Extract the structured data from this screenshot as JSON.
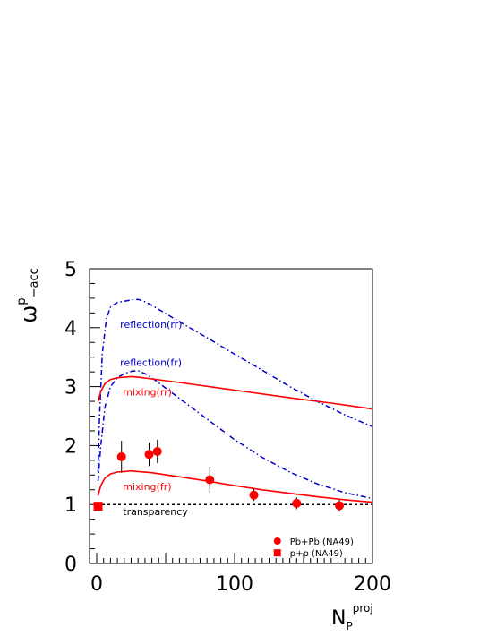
{
  "chart_data": {
    "type": "scatter",
    "ylabel": "ω",
    "ylabel_superscript": "p",
    "ylabel_subscript": "−acc",
    "xlabel": "N",
    "xlabel_subscript": "P",
    "xlabel_superscript": "proj",
    "xlim": [
      -5,
      200
    ],
    "ylim": [
      0,
      5
    ],
    "xticks": [
      0,
      100,
      200
    ],
    "yticks": [
      0,
      1,
      2,
      3,
      4,
      5
    ],
    "grid": false,
    "legend_position": "bottom-right",
    "curves": [
      {
        "label": "reflection(rr)",
        "color": "#0000cc",
        "style": "dash-dot",
        "x": [
          1,
          2,
          4,
          7,
          10,
          15,
          20,
          25,
          30,
          35,
          40,
          60,
          80,
          100,
          120,
          140,
          160,
          180,
          200
        ],
        "y": [
          1.55,
          2.45,
          3.55,
          4.15,
          4.35,
          4.43,
          4.45,
          4.47,
          4.48,
          4.44,
          4.38,
          4.1,
          3.83,
          3.55,
          3.28,
          3.0,
          2.75,
          2.52,
          2.32
        ]
      },
      {
        "label": "reflection(fr)",
        "color": "#0000cc",
        "style": "dash-dot",
        "x": [
          1,
          3,
          6,
          10,
          15,
          20,
          25,
          30,
          35,
          40,
          60,
          80,
          100,
          120,
          140,
          160,
          180,
          200
        ],
        "y": [
          1.4,
          2.0,
          2.65,
          3.0,
          3.15,
          3.22,
          3.26,
          3.27,
          3.22,
          3.15,
          2.8,
          2.45,
          2.1,
          1.8,
          1.55,
          1.35,
          1.2,
          1.1
        ]
      },
      {
        "label": "mixing(rr)",
        "color": "#ff0000",
        "style": "solid",
        "x": [
          1,
          3,
          6,
          10,
          15,
          20,
          25,
          30,
          40,
          60,
          100,
          140,
          170,
          200
        ],
        "y": [
          2.74,
          2.92,
          3.05,
          3.12,
          3.15,
          3.16,
          3.17,
          3.16,
          3.13,
          3.07,
          2.94,
          2.81,
          2.72,
          2.62
        ]
      },
      {
        "label": "mixing(fr)",
        "color": "#ff0000",
        "style": "solid",
        "x": [
          1,
          3,
          6,
          10,
          15,
          20,
          25,
          30,
          40,
          60,
          80,
          100,
          120,
          140,
          160,
          180,
          200
        ],
        "y": [
          1.15,
          1.32,
          1.45,
          1.52,
          1.55,
          1.56,
          1.57,
          1.56,
          1.54,
          1.47,
          1.4,
          1.32,
          1.25,
          1.19,
          1.13,
          1.08,
          1.04
        ]
      },
      {
        "label": "transparency",
        "color": "#000000",
        "style": "dotted",
        "x": [
          0,
          200
        ],
        "y": [
          1.0,
          1.0
        ]
      }
    ],
    "series": [
      {
        "name": "Pb+Pb (NA49)",
        "marker": "circle",
        "color": "#ff0000",
        "x": [
          18,
          38,
          44,
          82,
          114,
          145,
          176
        ],
        "y": [
          1.81,
          1.85,
          1.9,
          1.42,
          1.16,
          1.02,
          0.98
        ],
        "yerr": [
          0.27,
          0.2,
          0.2,
          0.22,
          0.1,
          0.1,
          0.1
        ]
      },
      {
        "name": "p+p (NA49)",
        "marker": "square",
        "color": "#ff0000",
        "x": [
          1
        ],
        "y": [
          0.97
        ],
        "yerr": [
          0.0
        ]
      }
    ]
  }
}
